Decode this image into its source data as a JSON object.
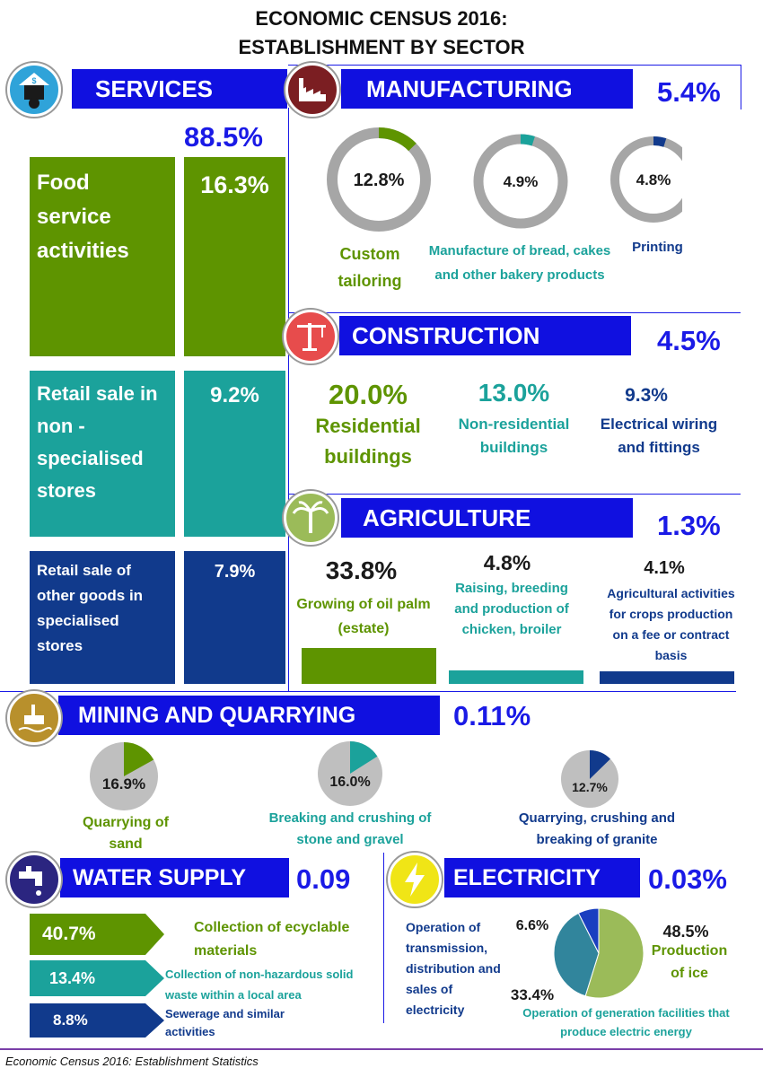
{
  "title_line1": "ECONOMIC CENSUS 2016:",
  "title_line2": "ESTABLISHMENT BY SECTOR",
  "footer": "Economic Census 2016: Establishment Statistics",
  "services": {
    "label": "SERVICES",
    "share": "88.5%",
    "items": [
      {
        "name": "Food service activities",
        "pct": "16.3%",
        "value": 16.3
      },
      {
        "name": "Retail sale in non - specialised stores",
        "pct": "9.2%",
        "value": 9.2
      },
      {
        "name": "Retail sale of other goods in specialised stores",
        "pct": "7.9%",
        "value": 7.9
      }
    ]
  },
  "manufacturing": {
    "label": "MANUFACTURING",
    "share": "5.4%",
    "items": [
      {
        "name": "Custom tailoring",
        "pct": "12.8%",
        "value": 12.8,
        "color": "#5e9400"
      },
      {
        "name": "Manufacture of bread, cakes and  other bakery products",
        "pct": "4.9%",
        "value": 4.9,
        "color": "#1ba29b"
      },
      {
        "name": "Printing",
        "pct": "4.8%",
        "value": 4.8,
        "color": "#113a8c"
      }
    ]
  },
  "construction": {
    "label": "CONSTRUCTION",
    "share": "4.5%",
    "items": [
      {
        "name": "Residential buildings",
        "pct": "20.0%"
      },
      {
        "name": "Non-residential buildings",
        "pct": "13.0%"
      },
      {
        "name": "Electrical wiring and fittings",
        "pct": "9.3%"
      }
    ]
  },
  "agriculture": {
    "label": "AGRICULTURE",
    "share": "1.3%",
    "items": [
      {
        "name": "Growing of oil palm (estate)",
        "pct": "33.8%",
        "value": 33.8
      },
      {
        "name": "Raising, breeding and production of chicken, broiler",
        "pct": "4.8%",
        "value": 4.8
      },
      {
        "name": "Agricultural activities for crops production on a fee or contract basis",
        "pct": "4.1%",
        "value": 4.1
      }
    ]
  },
  "mining": {
    "label": "MINING AND QUARRYING",
    "share": "0.11%",
    "items": [
      {
        "name": "Quarrying of sand",
        "pct": "16.9%",
        "value": 16.9,
        "color": "#5e9400"
      },
      {
        "name": "Breaking and  crushing of stone and gravel",
        "pct": "16.0%",
        "value": 16.0,
        "color": "#1ba29b"
      },
      {
        "name": "Quarrying, crushing and breaking of granite",
        "pct": "12.7%",
        "value": 12.7,
        "color": "#113a8c"
      }
    ]
  },
  "water": {
    "label": "WATER SUPPLY",
    "share": "0.09",
    "items": [
      {
        "name": "Collection of ecyclable materials",
        "pct": "40.7%",
        "value": 40.7
      },
      {
        "name": "Collection of non-hazardous solid waste within a local area",
        "pct": "13.4%",
        "value": 13.4
      },
      {
        "name": "Sewerage and similar activities",
        "pct": "8.8%",
        "value": 8.8
      }
    ]
  },
  "electricity": {
    "label": "ELECTRICITY",
    "share": "0.03%",
    "items": [
      {
        "name": "Production of ice",
        "pct": "48.5%",
        "value": 48.5,
        "color": "#9bbb59"
      },
      {
        "name": "Operation of generation  facilities that produce electric energy",
        "pct": "33.4%",
        "value": 33.4,
        "color": "#31859c"
      },
      {
        "name": "Operation of transmission, distribution and sales of electricity",
        "pct": "6.6%",
        "value": 6.6,
        "color": "#1a3fc0"
      }
    ]
  },
  "icons": [
    "services-icon",
    "factory-icon",
    "crane-icon",
    "palm-tree-icon",
    "oil-rig-icon",
    "water-tap-icon",
    "lightning-icon"
  ]
}
